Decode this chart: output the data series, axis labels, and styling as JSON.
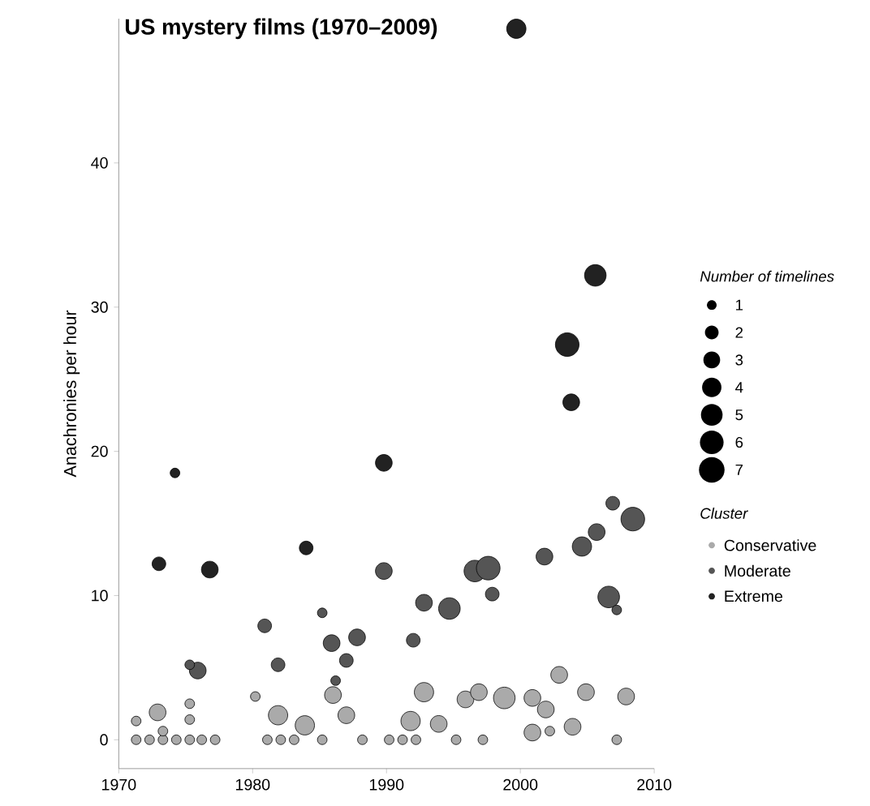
{
  "chart_data": {
    "type": "bubble",
    "title": "US mystery films (1970–2009)",
    "ylabel": "Anachronies per hour",
    "xlim": [
      1970,
      2010
    ],
    "xticks": [
      1970,
      1980,
      1990,
      2000,
      2010
    ],
    "ylim": [
      -2,
      50
    ],
    "yticks": [
      0,
      10,
      20,
      30,
      40
    ],
    "legend": "right",
    "legend_title": "Cluster",
    "annotations": [
      "Number of timelines"
    ],
    "size_legend": [
      1,
      2,
      3,
      4,
      5,
      6,
      7
    ],
    "series": [
      {
        "name": "Conservative",
        "color": "#aaaaaa",
        "x": [
          1971.3,
          1972.3,
          1973.3,
          1974.3,
          1975.3,
          1976.2,
          1977.2,
          1981.1,
          1982.1,
          1983.1,
          1985.2,
          1988.2,
          1990.2,
          1991.2,
          1992.2,
          1995.2,
          1997.2,
          2007.2,
          1971.3,
          1972.9,
          1973.3,
          1975.3,
          1975.3,
          1980.2,
          1981.9,
          1983.9,
          1986.0,
          1987.0,
          1991.8,
          1992.8,
          1993.9,
          1995.9,
          1996.9,
          1998.8,
          2000.9,
          2000.9,
          2001.9,
          2002.2,
          2002.9,
          2003.9,
          2004.9,
          2007.9
        ],
        "values": [
          0,
          0,
          0,
          0,
          0,
          0,
          0,
          0,
          0,
          0,
          0,
          0,
          0,
          0,
          0,
          0,
          0,
          0,
          1.3,
          1.9,
          0.6,
          2.5,
          1.4,
          3.0,
          1.7,
          1.0,
          3.1,
          1.7,
          1.3,
          3.3,
          1.1,
          2.8,
          3.3,
          2.9,
          2.9,
          0.5,
          2.1,
          0.6,
          4.5,
          0.9,
          3.3,
          3.0
        ],
        "sizes": [
          1,
          1,
          1,
          1,
          1,
          1,
          1,
          1,
          1,
          1,
          1,
          1,
          1,
          1,
          1,
          1,
          1,
          1,
          1,
          3,
          1,
          1,
          1,
          1,
          4,
          4,
          3,
          3,
          4,
          4,
          3,
          3,
          3,
          5,
          3,
          3,
          3,
          1,
          3,
          3,
          3,
          3
        ]
      },
      {
        "name": "Moderate",
        "color": "#555555",
        "x": [
          2008.4,
          2006.9,
          2005.7,
          2004.6,
          2001.8,
          1996.6,
          1997.6,
          1989.8,
          1997.9,
          2006.6,
          1994.7,
          1992.8,
          1980.9,
          1981.9,
          1985.9,
          1987.8,
          1987.0,
          1992.0,
          1975.9,
          1975.3,
          1985.2,
          1986.2,
          2007.2
        ],
        "values": [
          15.3,
          16.4,
          14.4,
          13.4,
          12.7,
          11.7,
          11.9,
          11.7,
          10.1,
          9.9,
          9.1,
          9.5,
          7.9,
          5.2,
          6.7,
          7.1,
          5.5,
          6.9,
          4.8,
          5.2,
          8.8,
          4.1,
          9.0
        ],
        "sizes": [
          6,
          2,
          3,
          4,
          3,
          5,
          6,
          3,
          2,
          5,
          5,
          3,
          2,
          2,
          3,
          3,
          2,
          2,
          3,
          1,
          1,
          1,
          1
        ]
      },
      {
        "name": "Extreme",
        "color": "#222222",
        "x": [
          1999.7,
          2005.6,
          2003.5,
          2003.8,
          1974.2,
          1989.8,
          1973.0,
          1976.8,
          1984.0
        ],
        "values": [
          49.3,
          32.2,
          27.4,
          23.4,
          18.5,
          19.2,
          12.2,
          11.8,
          13.3
        ],
        "sizes": [
          4,
          5,
          6,
          3,
          1,
          3,
          2,
          3,
          2
        ]
      }
    ]
  }
}
